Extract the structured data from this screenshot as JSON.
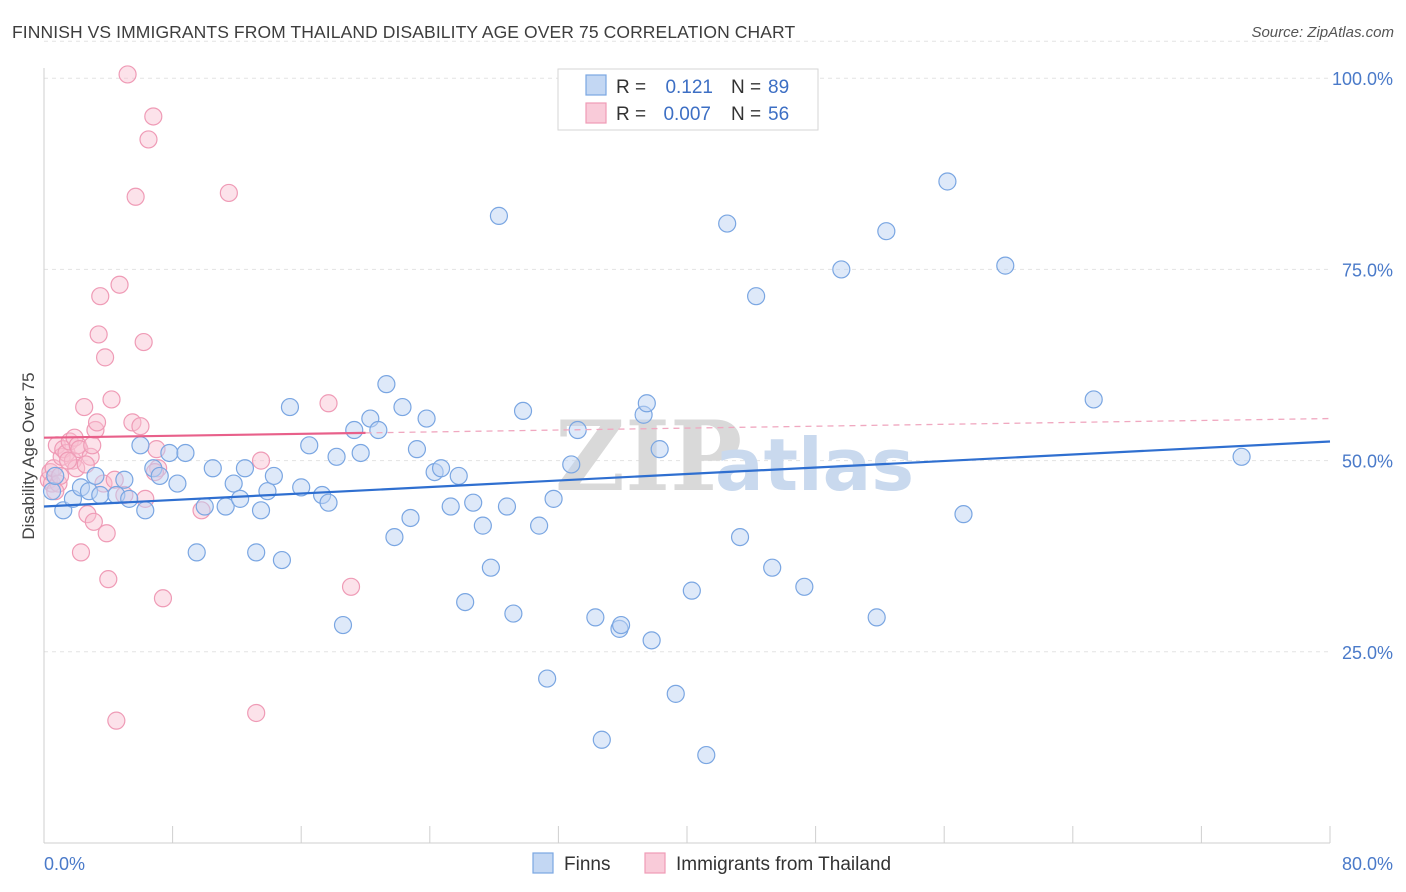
{
  "title": "FINNISH VS IMMIGRANTS FROM THAILAND DISABILITY AGE OVER 75 CORRELATION CHART",
  "source": "Source: ZipAtlas.com",
  "watermark": {
    "zip": "ZIP",
    "atlas": "atlas"
  },
  "legend": {
    "r_label": "R =",
    "n_label": "N =",
    "rows": [
      {
        "r": "0.121",
        "n": "89"
      },
      {
        "r": "0.007",
        "n": "56"
      }
    ]
  },
  "chart_data": {
    "type": "scatter",
    "xlabel": "",
    "ylabel": "Disability Age Over 75",
    "xlim": [
      0,
      80
    ],
    "ylim": [
      0,
      105
    ],
    "x_tick_labels": [
      "0.0%",
      "80.0%"
    ],
    "y_ticks": [
      25,
      50,
      75,
      100
    ],
    "y_tick_labels": [
      "25.0%",
      "50.0%",
      "75.0%",
      "100.0%"
    ],
    "grid": true,
    "legend_position": "top-center",
    "colors": {
      "finns": "#6f9fe0",
      "thailand": "#f2a0bb",
      "finns_line": "#2f6fd0",
      "thailand_line": "#e8608a"
    },
    "series": [
      {
        "name": "Finns",
        "trend": {
          "x0": 0,
          "y0": 44,
          "x1": 80,
          "y1": 52.5,
          "dashed_from": null
        },
        "points": [
          [
            0.5,
            46
          ],
          [
            0.7,
            48
          ],
          [
            1.2,
            43.5
          ],
          [
            1.8,
            45
          ],
          [
            2.3,
            46.5
          ],
          [
            2.8,
            46
          ],
          [
            3.2,
            48
          ],
          [
            3.5,
            45.5
          ],
          [
            4.5,
            45.5
          ],
          [
            5.0,
            47.5
          ],
          [
            5.3,
            45
          ],
          [
            6.0,
            52
          ],
          [
            6.3,
            43.5
          ],
          [
            6.8,
            49
          ],
          [
            7.2,
            48
          ],
          [
            7.8,
            51
          ],
          [
            8.3,
            47
          ],
          [
            8.8,
            51
          ],
          [
            9.5,
            38
          ],
          [
            10.0,
            44
          ],
          [
            10.5,
            49
          ],
          [
            11.3,
            44
          ],
          [
            11.8,
            47
          ],
          [
            12.2,
            45
          ],
          [
            12.5,
            49
          ],
          [
            13.2,
            38
          ],
          [
            13.5,
            43.5
          ],
          [
            13.9,
            46
          ],
          [
            14.3,
            48
          ],
          [
            14.8,
            37
          ],
          [
            15.3,
            57
          ],
          [
            16.0,
            46.5
          ],
          [
            16.5,
            52
          ],
          [
            17.3,
            45.5
          ],
          [
            17.7,
            44.5
          ],
          [
            18.2,
            50.5
          ],
          [
            18.6,
            28.5
          ],
          [
            19.3,
            54
          ],
          [
            19.7,
            51
          ],
          [
            20.3,
            55.5
          ],
          [
            20.8,
            54
          ],
          [
            21.3,
            60
          ],
          [
            21.8,
            40
          ],
          [
            22.3,
            57
          ],
          [
            22.8,
            42.5
          ],
          [
            23.2,
            51.5
          ],
          [
            23.8,
            55.5
          ],
          [
            24.3,
            48.5
          ],
          [
            24.7,
            49
          ],
          [
            25.3,
            44
          ],
          [
            25.8,
            48
          ],
          [
            26.2,
            31.5
          ],
          [
            26.7,
            44.5
          ],
          [
            27.3,
            41.5
          ],
          [
            27.8,
            36
          ],
          [
            28.3,
            82
          ],
          [
            28.8,
            44
          ],
          [
            29.2,
            30
          ],
          [
            29.8,
            56.5
          ],
          [
            30.8,
            41.5
          ],
          [
            31.3,
            21.5
          ],
          [
            31.7,
            45
          ],
          [
            32.8,
            49.5
          ],
          [
            33.2,
            54
          ],
          [
            34.3,
            29.5
          ],
          [
            34.7,
            13.5
          ],
          [
            35.8,
            28
          ],
          [
            35.9,
            28.5
          ],
          [
            37.3,
            56
          ],
          [
            37.5,
            57.5
          ],
          [
            37.8,
            26.5
          ],
          [
            38.3,
            51.5
          ],
          [
            39.3,
            19.5
          ],
          [
            40.3,
            33
          ],
          [
            41.2,
            11.5
          ],
          [
            42.5,
            81
          ],
          [
            43.3,
            40
          ],
          [
            44.3,
            71.5
          ],
          [
            45.3,
            36
          ],
          [
            47.3,
            33.5
          ],
          [
            49.6,
            75
          ],
          [
            51.8,
            29.5
          ],
          [
            52.4,
            80
          ],
          [
            56.2,
            86.5
          ],
          [
            57.2,
            43
          ],
          [
            59.8,
            75.5
          ],
          [
            65.3,
            58
          ],
          [
            74.5,
            50.5
          ]
        ]
      },
      {
        "name": "Immigrants from Thailand",
        "trend": {
          "x0": 0,
          "y0": 53,
          "x1": 80,
          "y1": 55.5,
          "dashed_from": 20
        },
        "points": [
          [
            0.3,
            47.5
          ],
          [
            0.4,
            48.5
          ],
          [
            0.5,
            47
          ],
          [
            0.6,
            49
          ],
          [
            0.8,
            52
          ],
          [
            0.9,
            47
          ],
          [
            1.1,
            50.5
          ],
          [
            1.2,
            51.5
          ],
          [
            1.4,
            51
          ],
          [
            1.6,
            52.5
          ],
          [
            1.8,
            50
          ],
          [
            1.9,
            53
          ],
          [
            2.1,
            52
          ],
          [
            2.2,
            51.5
          ],
          [
            2.3,
            38
          ],
          [
            2.5,
            57
          ],
          [
            2.7,
            43
          ],
          [
            2.9,
            50.5
          ],
          [
            3.1,
            42
          ],
          [
            3.2,
            54
          ],
          [
            3.3,
            55
          ],
          [
            3.4,
            66.5
          ],
          [
            3.5,
            71.5
          ],
          [
            3.7,
            47
          ],
          [
            3.8,
            63.5
          ],
          [
            3.9,
            40.5
          ],
          [
            4.0,
            34.5
          ],
          [
            4.2,
            58
          ],
          [
            4.5,
            16
          ],
          [
            4.7,
            73
          ],
          [
            5.0,
            45.5
          ],
          [
            5.2,
            100.5
          ],
          [
            5.5,
            55
          ],
          [
            5.7,
            84.5
          ],
          [
            6.0,
            54.5
          ],
          [
            6.2,
            65.5
          ],
          [
            6.3,
            45
          ],
          [
            6.5,
            92
          ],
          [
            6.8,
            95
          ],
          [
            7.0,
            51.5
          ],
          [
            7.1,
            49
          ],
          [
            7.4,
            32
          ],
          [
            9.8,
            43.5
          ],
          [
            11.5,
            85
          ],
          [
            13.2,
            17
          ],
          [
            13.5,
            50
          ],
          [
            17.7,
            57.5
          ],
          [
            19.1,
            33.5
          ],
          [
            2.0,
            49
          ],
          [
            1.0,
            48
          ],
          [
            0.7,
            46
          ],
          [
            2.6,
            49.5
          ],
          [
            3.0,
            52
          ],
          [
            1.5,
            50
          ],
          [
            4.4,
            47.5
          ],
          [
            6.9,
            48.5
          ]
        ]
      }
    ]
  },
  "bottom_legend": [
    "Finns",
    "Immigrants from Thailand"
  ]
}
